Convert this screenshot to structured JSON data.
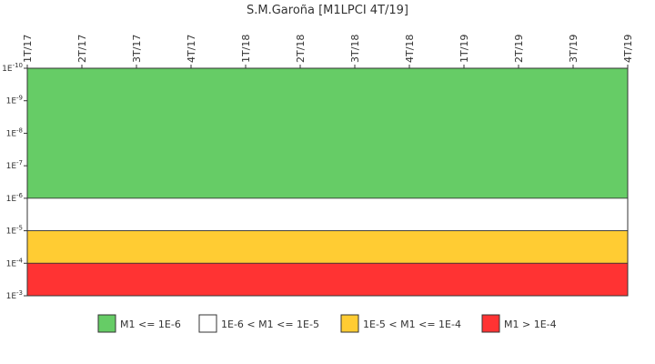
{
  "chart_data": {
    "type": "area",
    "title": "S.M.Garoña [M1LPCI 4T/19]",
    "x_ticks": [
      "1T/17",
      "2T/17",
      "3T/17",
      "4T/17",
      "1T/18",
      "2T/18",
      "3T/18",
      "4T/18",
      "1T/19",
      "2T/19",
      "3T/19",
      "4T/19"
    ],
    "y_axis": {
      "scale": "log",
      "reversed": true,
      "ticks": [
        {
          "value": 1e-10,
          "base": "1E",
          "exp": "-10"
        },
        {
          "value": 1e-09,
          "base": "1E",
          "exp": "-9"
        },
        {
          "value": 1e-08,
          "base": "1E",
          "exp": "-8"
        },
        {
          "value": 1e-07,
          "base": "1E",
          "exp": "-7"
        },
        {
          "value": 1e-06,
          "base": "1E",
          "exp": "-6"
        },
        {
          "value": 1e-05,
          "base": "1E",
          "exp": "-5"
        },
        {
          "value": 0.0001,
          "base": "1E",
          "exp": "-4"
        },
        {
          "value": 0.001,
          "base": "1E",
          "exp": "-3"
        }
      ],
      "ylim": [
        1e-10,
        0.001
      ]
    },
    "bands": [
      {
        "label": "M1 <= 1E-6",
        "from": 1e-10,
        "to": 1e-06,
        "color": "#66cc66"
      },
      {
        "label": "1E-6 < M1 <= 1E-5",
        "from": 1e-06,
        "to": 1e-05,
        "color": "#ffffff"
      },
      {
        "label": "1E-5 < M1 <= 1E-4",
        "from": 1e-05,
        "to": 0.0001,
        "color": "#ffcc33"
      },
      {
        "label": "M1 > 1E-4",
        "from": 0.0001,
        "to": 0.001,
        "color": "#ff3333"
      }
    ],
    "legend_position": "bottom"
  }
}
